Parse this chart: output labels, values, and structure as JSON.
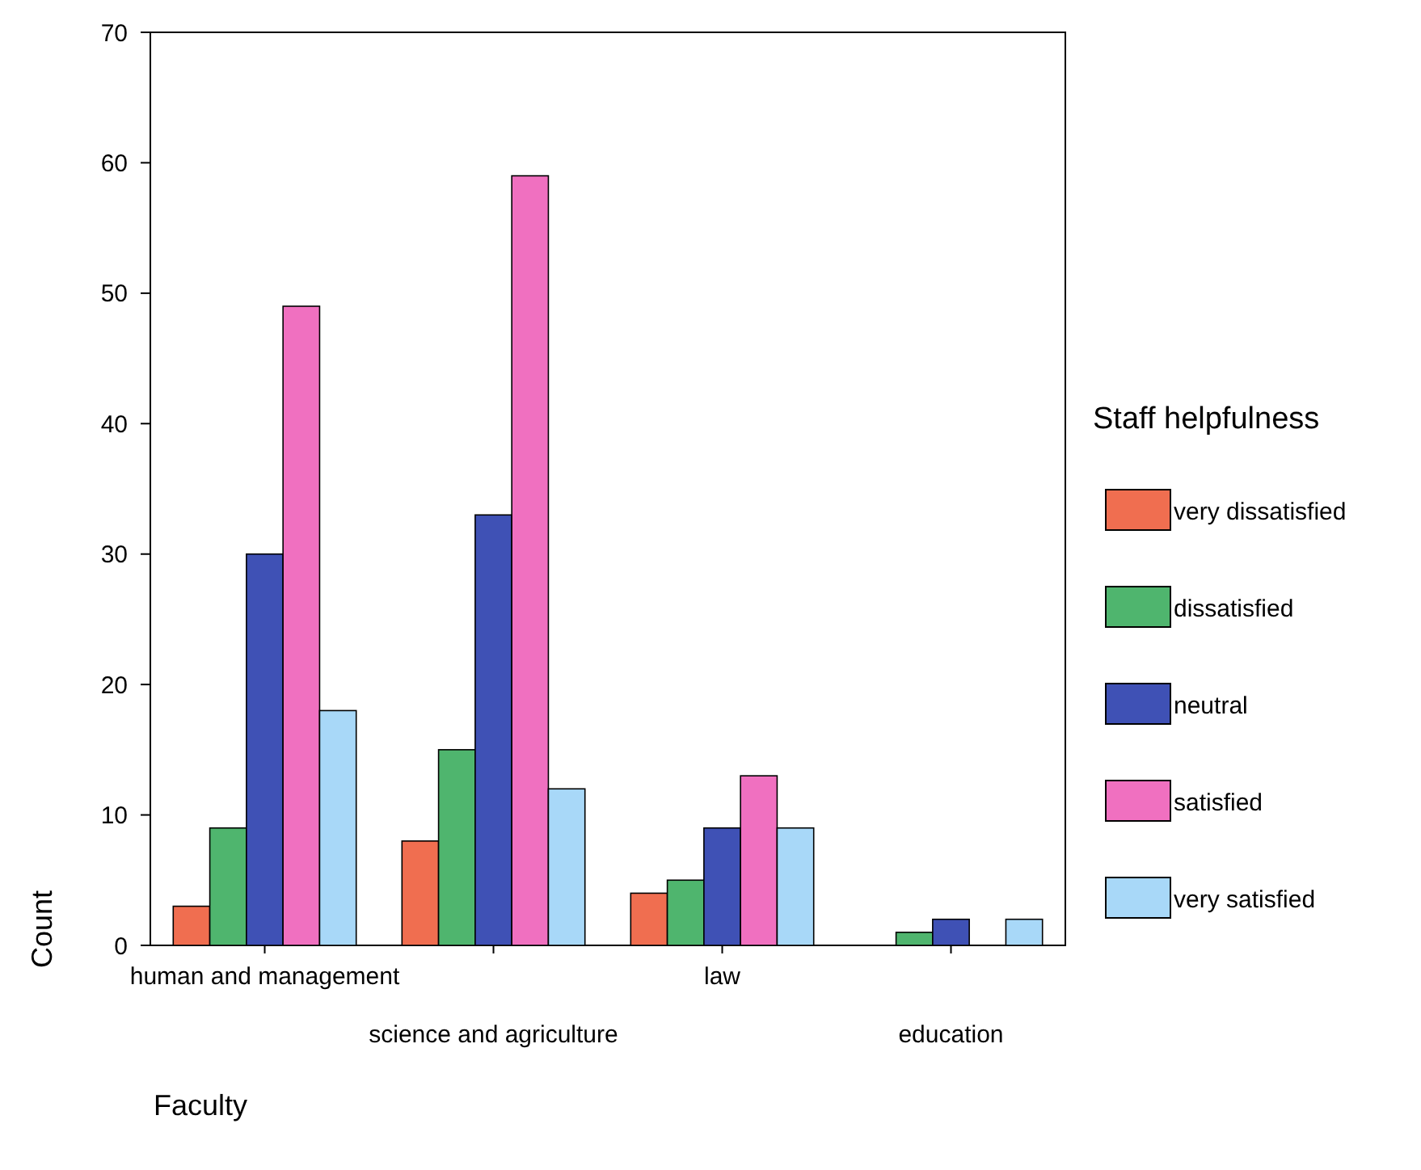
{
  "chart_data": {
    "type": "bar",
    "xlabel": "Faculty",
    "ylabel": "Count",
    "legend_title": "Staff helpfulness",
    "legend": "right",
    "categories": [
      "human and management",
      "science and agriculture",
      "law",
      "education"
    ],
    "ylim": [
      0,
      70
    ],
    "yticks": [
      0,
      10,
      20,
      30,
      40,
      50,
      60,
      70
    ],
    "grid": false,
    "series": [
      {
        "name": "very dissatisfied",
        "color": "#f06e50",
        "values": [
          3,
          8,
          4,
          0
        ]
      },
      {
        "name": "dissatisfied",
        "color": "#4fb56e",
        "values": [
          9,
          15,
          5,
          1
        ]
      },
      {
        "name": "neutral",
        "color": "#3f51b5",
        "values": [
          30,
          33,
          9,
          2
        ]
      },
      {
        "name": "satisfied",
        "color": "#f070c0",
        "values": [
          49,
          59,
          13,
          0
        ]
      },
      {
        "name": "very satisfied",
        "color": "#a8d8f8",
        "values": [
          18,
          12,
          9,
          2
        ]
      }
    ]
  }
}
